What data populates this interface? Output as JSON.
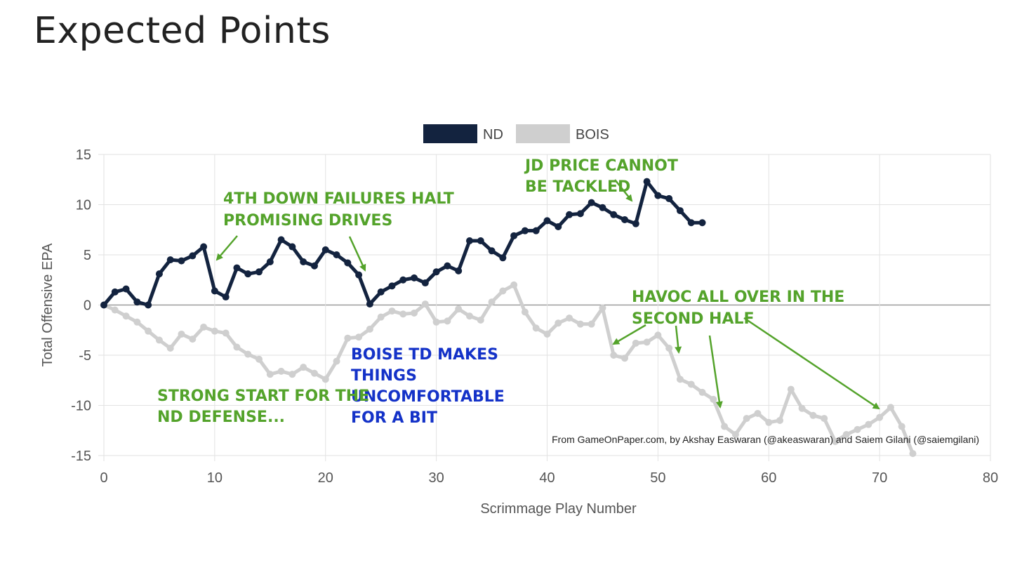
{
  "page": {
    "title": "Expected Points"
  },
  "chart_data": {
    "type": "line",
    "xlabel": "Scrimmage Play Number",
    "ylabel": "Total Offensive EPA",
    "xlim": [
      0,
      80
    ],
    "ylim": [
      -15,
      15
    ],
    "x_ticks": [
      0,
      10,
      20,
      30,
      40,
      50,
      60,
      70,
      80
    ],
    "y_ticks": [
      15,
      10,
      5,
      0,
      -5,
      -10,
      -15
    ],
    "grid": true,
    "legend_position": "top-center",
    "source_note": "From GameOnPaper.com, by Akshay Easwaran (@akeaswaran) and Saiem Gilani (@saiemgilani)",
    "series": [
      {
        "name": "ND",
        "color": "#13233f",
        "values": [
          0,
          1.3,
          1.6,
          0.3,
          0,
          3.1,
          4.5,
          4.4,
          4.9,
          5.8,
          1.4,
          0.8,
          3.7,
          3.1,
          3.3,
          4.3,
          6.5,
          5.8,
          4.3,
          3.9,
          5.5,
          5.0,
          4.2,
          3.0,
          0.1,
          1.3,
          1.9,
          2.5,
          2.7,
          2.2,
          3.3,
          3.9,
          3.4,
          6.4,
          6.4,
          5.4,
          4.7,
          6.9,
          7.4,
          7.4,
          8.4,
          7.8,
          9.0,
          9.1,
          10.2,
          9.7,
          9.0,
          8.5,
          8.1,
          12.3,
          10.9,
          10.6,
          9.4,
          8.2,
          8.2
        ]
      },
      {
        "name": "BOIS",
        "color": "#cfcfcf",
        "values": [
          0,
          -0.5,
          -1.1,
          -1.7,
          -2.6,
          -3.5,
          -4.3,
          -2.9,
          -3.4,
          -2.2,
          -2.6,
          -2.8,
          -4.2,
          -4.9,
          -5.4,
          -6.9,
          -6.6,
          -6.9,
          -6.2,
          -6.8,
          -7.4,
          -5.6,
          -3.3,
          -3.2,
          -2.4,
          -1.2,
          -0.6,
          -0.9,
          -0.8,
          0.1,
          -1.7,
          -1.6,
          -0.4,
          -1.1,
          -1.5,
          0.3,
          1.4,
          2.0,
          -0.7,
          -2.3,
          -2.9,
          -1.8,
          -1.3,
          -1.9,
          -1.9,
          -0.3,
          -5.0,
          -5.3,
          -3.8,
          -3.7,
          -3.0,
          -4.3,
          -7.4,
          -7.9,
          -8.7,
          -9.4,
          -12.1,
          -12.9,
          -11.3,
          -10.8,
          -11.7,
          -11.5,
          -8.4,
          -10.3,
          -11.0,
          -11.3,
          -13.6,
          -12.9,
          -12.4,
          -11.9,
          -11.2,
          -10.2,
          -12.1,
          -14.8
        ]
      }
    ],
    "annotations": [
      {
        "id": "fourth-down",
        "lines": [
          "4TH DOWN FAILURES HALT",
          "PROMISING DRIVES"
        ],
        "color": "#54a32b"
      },
      {
        "id": "jd-price",
        "lines": [
          "JD PRICE CANNOT",
          "BE TACKLED"
        ],
        "color": "#54a32b"
      },
      {
        "id": "havoc",
        "lines": [
          "HAVOC ALL OVER IN THE",
          "SECOND HALF"
        ],
        "color": "#54a32b"
      },
      {
        "id": "boise-td",
        "lines": [
          "BOISE TD MAKES",
          "THINGS",
          "UNCOMFORTABLE",
          "FOR A BIT"
        ],
        "color": "#1432c8"
      },
      {
        "id": "strong-start",
        "lines": [
          "STRONG START FOR THE",
          "ND DEFENSE..."
        ],
        "color": "#54a32b"
      }
    ]
  }
}
